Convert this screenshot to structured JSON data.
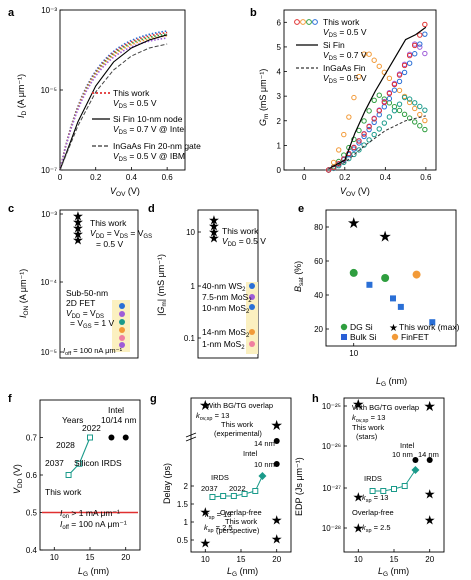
{
  "panel_labels": {
    "a": "a",
    "b": "b",
    "c": "c",
    "d": "d",
    "e": "e",
    "f": "f",
    "g": "g",
    "h": "h"
  },
  "colors": {
    "blue": "#2a6fd6",
    "red": "#e03030",
    "green": "#2f9e3f",
    "orange": "#f29a38",
    "purple": "#9e5cd8",
    "teal": "#1a9a8a",
    "pink": "#f07fa0",
    "yellow_band": "#fbf0c0"
  },
  "chart_data": [
    {
      "panel": "a",
      "type": "line",
      "scale": "log-y",
      "xlabel_var": "V",
      "xlabel_sub": "OV",
      "xlabel_unit": " (V)",
      "ylabel_var": "I",
      "ylabel_sub": "D",
      "ylabel_unit": " (A μm⁻¹)",
      "xlim": [
        0,
        0.7
      ],
      "ylim_exp": [
        -7,
        -3
      ],
      "xticks": [
        "0",
        "0.2",
        "0.4",
        "0.6"
      ],
      "yticks": [
        "10⁻⁷",
        "10⁻⁵",
        "10⁻³"
      ],
      "legend": [
        {
          "l1": "This work",
          "l2": "V",
          "l2sub": "DS",
          "l2rest": " = 0.5 V",
          "style": "dotted"
        },
        {
          "l1": "Si Fin 10-nm node",
          "l2": "V",
          "l2sub": "DS",
          "l2rest": " = 0.7 V @ Intel",
          "style": "solid"
        },
        {
          "l1": "InGaAs Fin 20-nm gate",
          "l2": "V",
          "l2sub": "DS",
          "l2rest": " = 0.5 V @ IBM",
          "style": "dashed"
        }
      ],
      "series_this_work_saturation": [
        -3.42,
        -3.46,
        -3.5,
        -3.54,
        -3.6
      ],
      "si_fin": {
        "x": [
          0,
          0.1,
          0.2,
          0.3,
          0.4,
          0.5,
          0.6
        ],
        "log_y": [
          -7,
          -5.8,
          -4.9,
          -4.3,
          -3.95,
          -3.75,
          -3.62
        ]
      },
      "ingaas_fin": {
        "x": [
          0,
          0.1,
          0.2,
          0.3,
          0.4,
          0.5,
          0.6
        ],
        "log_y": [
          -7,
          -5.9,
          -5.05,
          -4.5,
          -4.15,
          -3.95,
          -3.85
        ]
      }
    },
    {
      "panel": "b",
      "type": "line",
      "xlabel_var": "V",
      "xlabel_sub": "OV",
      "xlabel_unit": " (V)",
      "ylabel_var": "G",
      "ylabel_sub": "m",
      "ylabel_unit": " (mS μm⁻¹)",
      "xlim": [
        -0.1,
        0.65
      ],
      "ylim": [
        0,
        6.5
      ],
      "xticks": [
        "0",
        "0.2",
        "0.4",
        "0.6"
      ],
      "yticks": [
        "0",
        "1",
        "2",
        "3",
        "4",
        "5",
        "6"
      ],
      "legend": [
        {
          "l1": "This work",
          "l2": "V",
          "l2sub": "DS",
          "l2rest": " = 0.5 V",
          "style": "circles"
        },
        {
          "l1": "Si Fin",
          "l2": "V",
          "l2sub": "DS",
          "l2rest": " = 0.7 V",
          "style": "solid"
        },
        {
          "l1": "InGaAs Fin",
          "l2": "V",
          "l2sub": "DS",
          "l2rest": " = 0.5 V",
          "style": "dashed"
        }
      ],
      "si_fin": {
        "x": [
          0.12,
          0.2,
          0.25,
          0.3,
          0.35,
          0.4,
          0.45,
          0.5,
          0.55,
          0.6
        ],
        "y": [
          0.05,
          0.4,
          1.5,
          2.4,
          3.2,
          3.9,
          4.6,
          5.3,
          5.5,
          5.8
        ]
      },
      "ingaas_fin": {
        "x": [
          0.12,
          0.2,
          0.3,
          0.4,
          0.5,
          0.6
        ],
        "y": [
          0.05,
          0.3,
          1.0,
          1.6,
          2.0,
          2.2
        ]
      }
    },
    {
      "panel": "c",
      "type": "scatter",
      "scale": "log-y",
      "ylabel_var": "I",
      "ylabel_sub": "ON",
      "ylabel_unit": " (A μm⁻¹)",
      "yticks": [
        "10⁻⁵",
        "10⁻⁴",
        "10⁻³"
      ],
      "this_work": {
        "l1": "This work",
        "l2a": "V",
        "l2asub": "DD",
        "l2b": " = V",
        "l2bsub": "DS",
        "l2c": " = V",
        "l2csub": "GS",
        "l3": "= 0.5 V"
      },
      "other": {
        "l1": "Sub-50-nm",
        "l2": "2D FET",
        "l3a": "V",
        "l3sub": "DD",
        "l3b": " = V",
        "l3bsub": "DS",
        "l4": "= V",
        "l4sub": "GS",
        "l4b": " = 1 V"
      },
      "ioff_note_a": "I",
      "ioff_note_sub": "off",
      "ioff_note_b": " = 100 nA μm⁻¹"
    },
    {
      "panel": "d",
      "type": "scatter",
      "scale": "log-y",
      "ylabel_var": "|G",
      "ylabel_sub": "m",
      "ylabel_unit": "| (mS μm⁻¹)",
      "yticks": [
        "0.1",
        "1",
        "10"
      ],
      "this_work": {
        "l1": "This work",
        "l2": "V",
        "l2sub": "DD",
        "l2rest": " = 0.5 V"
      },
      "labels": [
        {
          "a": "40-nm WS",
          "sub": "2"
        },
        {
          "a": "7.5-nm MoS",
          "sub": "2"
        },
        {
          "a": "10-nm MoS",
          "sub": "2"
        },
        {
          "a": "14-nm MoS",
          "sub": "2"
        },
        {
          "a": "1-nm MoS",
          "sub": "2"
        }
      ]
    },
    {
      "panel": "e",
      "type": "scatter",
      "xlabel_var": "L",
      "xlabel_sub": "G",
      "xlabel_unit": " (nm)",
      "ylabel_var": "B",
      "ylabel_sub": "sat",
      "ylabel_unit": " (%)",
      "yticks": [
        "20",
        "40",
        "60",
        "80"
      ],
      "xticks": [
        "10"
      ],
      "legend": [
        "DG Si",
        "This work (max)",
        "Bulk Si",
        "FinFET"
      ],
      "points": [
        {
          "s": "This work (max)",
          "x": 10,
          "y": 82
        },
        {
          "s": "This work (max)",
          "x": 14,
          "y": 74
        },
        {
          "s": "DG Si",
          "x": 10,
          "y": 53
        },
        {
          "s": "DG Si",
          "x": 14,
          "y": 50
        },
        {
          "s": "FinFET",
          "x": 18,
          "y": 52
        },
        {
          "s": "Bulk Si",
          "x": 12,
          "y": 46
        },
        {
          "s": "Bulk Si",
          "x": 15,
          "y": 38
        },
        {
          "s": "Bulk Si",
          "x": 16,
          "y": 33
        },
        {
          "s": "Bulk Si",
          "x": 20,
          "y": 24
        }
      ]
    },
    {
      "panel": "f",
      "type": "line",
      "xlabel_var": "L",
      "xlabel_sub": "G",
      "xlabel_unit": " (nm)",
      "ylabel_var": "V",
      "ylabel_sub": "DD",
      "ylabel_unit": " (V)",
      "xlim": [
        8,
        22
      ],
      "ylim": [
        0.4,
        0.8
      ],
      "xticks": [
        "10",
        "15",
        "20"
      ],
      "yticks": [
        "0.4",
        "0.5",
        "0.6",
        "0.7"
      ],
      "texts": {
        "years": "Years",
        "intel": "Intel",
        "intel2": "10/14 nm",
        "y2022": "2022",
        "y2028": "2028",
        "y2037": "2037",
        "irds": "Silicon IRDS",
        "this_work": "This work",
        "ion_a": "I",
        "ion_sub": "on",
        "ion_b": " > 1 mA μm⁻¹",
        "ioff_a": "I",
        "ioff_sub": "off",
        "ioff_b": " = 100 nA μm⁻¹"
      },
      "irds": [
        {
          "x": 12,
          "y": 0.6
        },
        {
          "x": 13.5,
          "y": 0.63
        },
        {
          "x": 15,
          "y": 0.7
        }
      ],
      "intel": [
        {
          "x": 18,
          "y": 0.7
        },
        {
          "x": 20,
          "y": 0.7
        }
      ],
      "this_work_vdd": 0.5
    },
    {
      "panel": "g",
      "type": "scatter",
      "xlabel_var": "L",
      "xlabel_sub": "G",
      "xlabel_unit": " (nm)",
      "ylabel": "Delay (ps)",
      "xticks": [
        "10",
        "15",
        "20"
      ],
      "yticks": [
        "0.5",
        "1",
        "1.5",
        "2"
      ],
      "texts": {
        "bgtg": "With BG/TG overlap",
        "kov_a": "k",
        "kov_sub": "ov,sp",
        "kov_b": " = 13",
        "tw_exp1": "This work",
        "tw_exp2": "(experimental)",
        "n14": "14 nm",
        "intel": "Intel",
        "n10": "10 nm",
        "irds": "IRDS",
        "y2037": "2037",
        "y2022": "2022",
        "ksp13_a": "k",
        "ksp13_sub": "sp",
        "ksp13_b": " = 13",
        "ksp25_a": "k",
        "ksp25_sub": "sp",
        "ksp25_b": " = 2.5",
        "of1": "Overlap-free",
        "of2": "This work",
        "of3": "(perspective)"
      }
    },
    {
      "panel": "h",
      "type": "scatter",
      "scale": "log-y",
      "xlabel_var": "L",
      "xlabel_sub": "G",
      "xlabel_unit": " (nm)",
      "ylabel": "EDP (Js μm⁻¹)",
      "xticks": [
        "10",
        "15",
        "20"
      ],
      "yticks": [
        "10⁻²⁸",
        "10⁻²⁷",
        "10⁻²⁶",
        "10⁻²⁵"
      ],
      "texts": {
        "bgtg": "With BG/TG overlap",
        "kov_a": "k",
        "kov_sub": "ov,sp",
        "kov_b": " = 13",
        "tw1": "This work",
        "tw2": "(stars)",
        "intel": "Intel",
        "n10": "10 nm",
        "n14": "14 nm",
        "irds": "IRDS",
        "ksp13_a": "k",
        "ksp13_sub": "sp",
        "ksp13_b": " = 13",
        "of1": "Overlap-free",
        "ksp25_a": "k",
        "ksp25_sub": "sp",
        "ksp25_b": " = 2.5"
      }
    }
  ]
}
